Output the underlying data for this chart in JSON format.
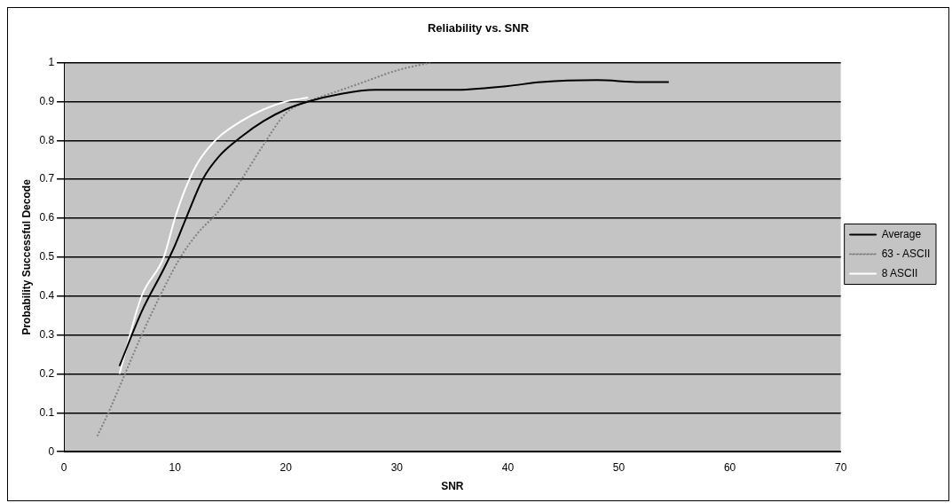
{
  "chart_data": {
    "type": "line",
    "title": "Reliability vs. SNR",
    "xlabel": "SNR",
    "ylabel": "Probability Successful Decode",
    "xlim": [
      0,
      70
    ],
    "xticks": [
      0,
      10,
      20,
      30,
      40,
      50,
      60,
      70
    ],
    "ylim": [
      0,
      1
    ],
    "yticks": [
      0,
      0.1,
      0.2,
      0.3,
      0.4,
      0.5,
      0.6,
      0.7,
      0.8,
      0.9,
      1
    ],
    "grid": "y",
    "legend": "right",
    "marker": "none",
    "series": [
      {
        "name": "Average",
        "color": "#000000",
        "line_style": "solid",
        "x": [
          5,
          7,
          9,
          10,
          11,
          12.5,
          14,
          16,
          18,
          20,
          22,
          25,
          28,
          35,
          40,
          43,
          48,
          52,
          54.5
        ],
        "values": [
          0.22,
          0.36,
          0.47,
          0.53,
          0.6,
          0.7,
          0.76,
          0.81,
          0.85,
          0.88,
          0.9,
          0.92,
          0.93,
          0.93,
          0.94,
          0.95,
          0.955,
          0.95,
          0.95
        ]
      },
      {
        "name": "63 - ASCII",
        "color": "#808080",
        "line_style": "dotted",
        "x": [
          3,
          4,
          5.5,
          7,
          9,
          10.5,
          12,
          14,
          16,
          18,
          20,
          22,
          25,
          27,
          30,
          33
        ],
        "values": [
          0.04,
          0.1,
          0.2,
          0.3,
          0.42,
          0.5,
          0.56,
          0.62,
          0.7,
          0.79,
          0.87,
          0.9,
          0.93,
          0.95,
          0.98,
          1
        ]
      },
      {
        "name": "8 ASCII",
        "color": "#ffffff",
        "line_style": "solid",
        "x": [
          5,
          7,
          9,
          10,
          11,
          12,
          13,
          14,
          16,
          18,
          20,
          22
        ],
        "values": [
          0.2,
          0.4,
          0.5,
          0.6,
          0.68,
          0.74,
          0.78,
          0.81,
          0.85,
          0.88,
          0.9,
          0.91
        ]
      }
    ]
  }
}
